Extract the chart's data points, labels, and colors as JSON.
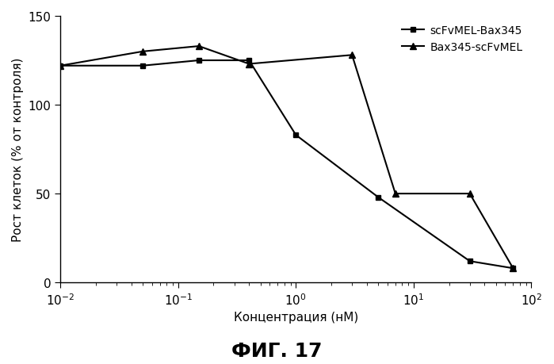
{
  "series1_name": "scFvMEL-Bax345",
  "series2_name": "Bax345-scFvMEL",
  "series1_x": [
    0.01,
    0.05,
    0.15,
    0.4,
    1.0,
    5.0,
    30.0,
    70.0
  ],
  "series1_y": [
    122,
    122,
    125,
    125,
    83,
    48,
    12,
    8
  ],
  "series2_x": [
    0.01,
    0.05,
    0.15,
    0.4,
    3.0,
    7.0,
    30.0,
    70.0
  ],
  "series2_y": [
    122,
    130,
    133,
    123,
    128,
    50,
    50,
    8
  ],
  "xlabel": "Концентрация (нМ)",
  "ylabel": "Рост клеток (% от контроля)",
  "title": "ФИГ. 17",
  "xlim": [
    0.01,
    100
  ],
  "ylim": [
    0,
    150
  ],
  "yticks": [
    0,
    50,
    100,
    150
  ],
  "xticks": [
    0.01,
    0.1,
    1,
    10,
    100
  ],
  "xticklabels": [
    "10-2",
    "10-1",
    "100",
    "101",
    "102"
  ],
  "line_color": "#000000",
  "bg_color": "#ffffff",
  "marker1": "s",
  "marker2": "^",
  "markersize1": 5,
  "markersize2": 6,
  "linewidth": 1.5,
  "title_fontsize": 18,
  "axis_fontsize": 11,
  "tick_fontsize": 11,
  "legend_fontsize": 10
}
